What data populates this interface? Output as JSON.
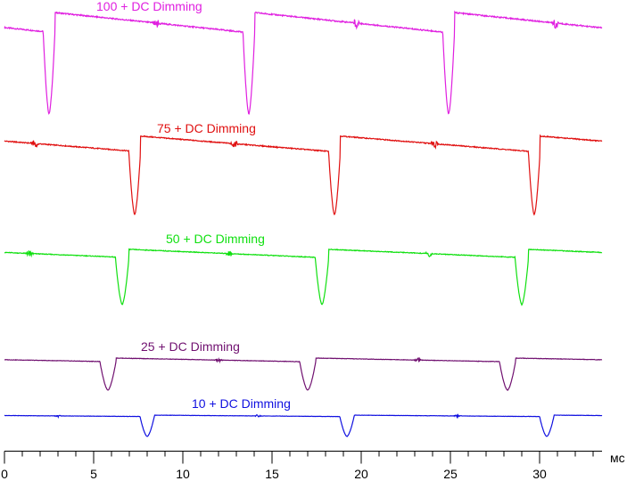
{
  "chart_data": {
    "type": "line",
    "xunit": "мс",
    "xlim": [
      0,
      33.5
    ],
    "xticks": [
      0,
      5,
      10,
      15,
      20,
      25,
      30
    ],
    "minor_tick_step": 1,
    "grid": false,
    "legend": "inline-labels",
    "series": [
      {
        "name": "100 + DC Dimming",
        "color": "#e020e0",
        "baseline_start": 0.92,
        "baseline_end": 0.8,
        "peak_level": 0.99,
        "trough_level": 0.0,
        "period": 11.2,
        "dips": [
          2.5,
          13.7,
          24.9
        ],
        "dip_halfwidth": 0.33,
        "artifacts": [
          8.5,
          19.7,
          30.9
        ]
      },
      {
        "name": "75 + DC Dimming",
        "color": "#e01010",
        "baseline_start": 0.9,
        "baseline_end": 0.79,
        "peak_level": 0.98,
        "trough_level": 0.0,
        "period": 11.2,
        "dips": [
          7.3,
          18.5,
          29.7
        ],
        "dip_halfwidth": 0.33,
        "artifacts": [
          1.7,
          12.9,
          24.1
        ]
      },
      {
        "name": "50 + DC Dimming",
        "color": "#10e010",
        "baseline_start": 0.9,
        "baseline_end": 0.83,
        "peak_level": 0.97,
        "trough_level": 0.0,
        "period": 11.2,
        "dips": [
          6.6,
          17.8,
          29.0
        ],
        "dip_halfwidth": 0.38,
        "artifacts": [
          1.4,
          12.6,
          23.8
        ]
      },
      {
        "name": "25 + DC Dimming",
        "color": "#701070",
        "baseline_start": 0.86,
        "baseline_end": 0.8,
        "peak_level": 0.9,
        "trough_level": 0.0,
        "period": 11.2,
        "dips": [
          5.8,
          17.0,
          28.2
        ],
        "dip_halfwidth": 0.45,
        "artifacts": [
          12.0,
          23.2
        ]
      },
      {
        "name": "10 + DC Dimming",
        "color": "#1010e0",
        "baseline_start": 0.86,
        "baseline_end": 0.86,
        "peak_level": 0.92,
        "trough_level": 0.0,
        "period": 11.2,
        "dips": [
          8.0,
          19.2,
          30.4
        ],
        "dip_halfwidth": 0.4,
        "artifacts": [
          3.0,
          14.2,
          25.4
        ]
      }
    ]
  }
}
